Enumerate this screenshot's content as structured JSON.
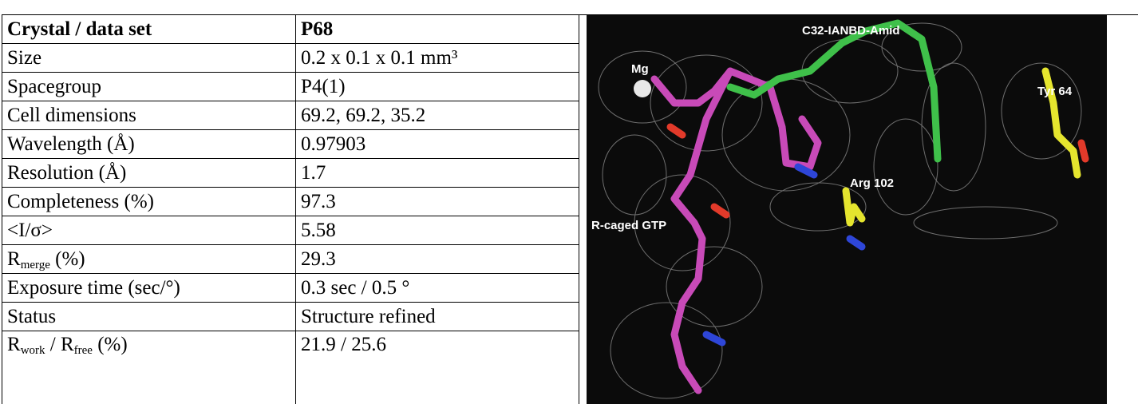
{
  "table": {
    "header": [
      "Crystal / data set",
      "P68"
    ],
    "rows": [
      [
        "Size",
        "0.2 x 0.1 x 0.1 mm³"
      ],
      [
        "Spacegroup",
        "P4(1)"
      ],
      [
        "Cell dimensions",
        "69.2, 69.2, 35.2"
      ],
      [
        "Wavelength (Å)",
        "0.97903"
      ],
      [
        "Resolution (Å)",
        "1.7"
      ],
      [
        "Completeness (%)",
        "97.3"
      ],
      [
        "<I/σ>",
        "5.58"
      ],
      [
        [
          {
            "text": "R",
            "sub": false
          },
          {
            "text": "merge",
            "sub": true
          },
          {
            "text": " (%)",
            "sub": false
          }
        ],
        "29.3"
      ],
      [
        "Exposure time (sec/°)",
        "0.3 sec / 0.5 °"
      ],
      [
        "Status",
        "Structure refined"
      ],
      [
        [
          {
            "text": "R",
            "sub": false
          },
          {
            "text": "work",
            "sub": true
          },
          {
            "text": " / R",
            "sub": false
          },
          {
            "text": "free",
            "sub": true
          },
          {
            "text": " (%)",
            "sub": false
          }
        ],
        "21.9 / 25.6"
      ]
    ]
  },
  "figure": {
    "labels": [
      "C32-IANBD-Amid",
      "Mg",
      "Tyr 64",
      "Arg 102",
      "R-caged GTP"
    ]
  }
}
